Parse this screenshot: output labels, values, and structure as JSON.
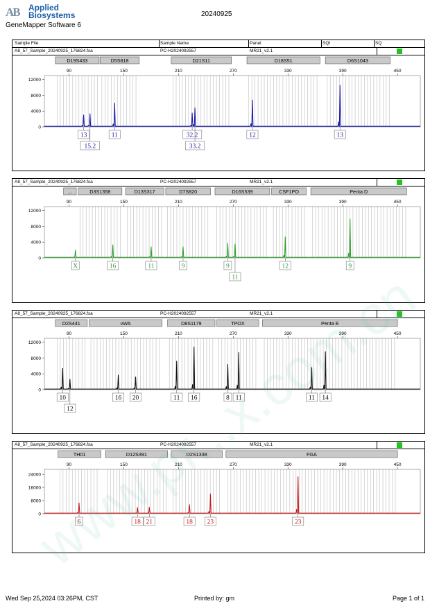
{
  "header": {
    "logo_mark": "AB",
    "logo_line1": "Applied",
    "logo_line2": "Biosystems",
    "software": "GeneMapper Software 6",
    "date": "20240925"
  },
  "columns": {
    "sample_file": "Sample File",
    "sample_name": "Sample Name",
    "panel": "Panel",
    "sqi": "SQI",
    "sq": "SQ"
  },
  "sample": {
    "file": "A8_57_Sample_20240925_176824.fsa",
    "name": "PC-H2024092557",
    "panel": "MR21_v2.1"
  },
  "colors": {
    "sq_box": "#22c322"
  },
  "footer": {
    "date": "Wed Sep 25,2024 03:26PM, CST",
    "printed": "Printed by: gm",
    "page": "Page 1 of 1"
  },
  "watermark": "www.pr...x.com.cn",
  "chart_data": [
    {
      "type": "line",
      "color": "#1c1ca8",
      "x_ticks": [
        90,
        150,
        210,
        270,
        330,
        390,
        450
      ],
      "y_ticks": [
        0,
        4000,
        8000,
        12000
      ],
      "ylim": [
        0,
        13000
      ],
      "loci": [
        {
          "name": "D19S433",
          "start": 75,
          "end": 123
        },
        {
          "name": "D5S818",
          "start": 124,
          "end": 167
        },
        {
          "name": "D21S11",
          "start": 202,
          "end": 268
        },
        {
          "name": "D18S51",
          "start": 285,
          "end": 365
        },
        {
          "name": "D6S1043",
          "start": 371,
          "end": 442
        }
      ],
      "peaks": [
        {
          "x": 106,
          "height": 3000,
          "allele": "13",
          "row": 1
        },
        {
          "x": 113,
          "height": 3300,
          "allele": "15.2",
          "row": 2
        },
        {
          "x": 140,
          "height": 6000,
          "allele": "11",
          "row": 1
        },
        {
          "x": 225,
          "height": 3500,
          "allele": "32.2",
          "row": 1
        },
        {
          "x": 228,
          "height": 4800,
          "allele": "33.2",
          "row": 2
        },
        {
          "x": 291,
          "height": 6800,
          "allele": "12",
          "row": 1
        },
        {
          "x": 387,
          "height": 10500,
          "allele": "13",
          "row": 1
        }
      ]
    },
    {
      "type": "line",
      "color": "#2e9e2e",
      "x_ticks": [
        90,
        150,
        210,
        270,
        330,
        390,
        450
      ],
      "y_ticks": [
        0,
        4000,
        8000,
        12000
      ],
      "ylim": [
        0,
        13000
      ],
      "loci": [
        {
          "name": "...",
          "start": 84,
          "end": 98
        },
        {
          "name": "D3S1358",
          "start": 100,
          "end": 148
        },
        {
          "name": "D13S317",
          "start": 152,
          "end": 194
        },
        {
          "name": "D7S820",
          "start": 196,
          "end": 245
        },
        {
          "name": "D16S539",
          "start": 250,
          "end": 310
        },
        {
          "name": "CSF1PO",
          "start": 312,
          "end": 350
        },
        {
          "name": "Penta D",
          "start": 355,
          "end": 460
        }
      ],
      "peaks": [
        {
          "x": 97,
          "height": 2000,
          "allele": "X",
          "row": 1
        },
        {
          "x": 138,
          "height": 3300,
          "allele": "16",
          "row": 1
        },
        {
          "x": 180,
          "height": 2800,
          "allele": "11",
          "row": 1
        },
        {
          "x": 215,
          "height": 2800,
          "allele": "9",
          "row": 1
        },
        {
          "x": 264,
          "height": 3700,
          "allele": "9",
          "row": 1
        },
        {
          "x": 272,
          "height": 3500,
          "allele": "11",
          "row": 2
        },
        {
          "x": 327,
          "height": 5300,
          "allele": "12",
          "row": 1
        },
        {
          "x": 398,
          "height": 9800,
          "allele": "9",
          "row": 1
        }
      ]
    },
    {
      "type": "line",
      "color": "#111111",
      "x_ticks": [
        90,
        150,
        210,
        270,
        330,
        390,
        450
      ],
      "y_ticks": [
        0,
        4000,
        8000,
        12000
      ],
      "ylim": [
        0,
        13000
      ],
      "loci": [
        {
          "name": "D2S441",
          "start": 75,
          "end": 110
        },
        {
          "name": "vWA",
          "start": 112,
          "end": 192
        },
        {
          "name": "D8S1179",
          "start": 198,
          "end": 250
        },
        {
          "name": "TPOX",
          "start": 252,
          "end": 298
        },
        {
          "name": "Penta E",
          "start": 302,
          "end": 450
        }
      ],
      "peaks": [
        {
          "x": 83,
          "height": 5400,
          "allele": "10",
          "row": 1
        },
        {
          "x": 91,
          "height": 2600,
          "allele": "12",
          "row": 2
        },
        {
          "x": 144,
          "height": 3700,
          "allele": "16",
          "row": 1
        },
        {
          "x": 163,
          "height": 3200,
          "allele": "20",
          "row": 1
        },
        {
          "x": 208,
          "height": 7200,
          "allele": "11",
          "row": 1
        },
        {
          "x": 227,
          "height": 10800,
          "allele": "16",
          "row": 1
        },
        {
          "x": 264,
          "height": 6400,
          "allele": "8",
          "row": 1
        },
        {
          "x": 276,
          "height": 9400,
          "allele": "11",
          "row": 1
        },
        {
          "x": 356,
          "height": 5600,
          "allele": "11",
          "row": 1
        },
        {
          "x": 371,
          "height": 9600,
          "allele": "14",
          "row": 1
        }
      ]
    },
    {
      "type": "line",
      "color": "#c81a1a",
      "x_ticks": [
        90,
        150,
        210,
        270,
        330,
        390,
        450
      ],
      "y_ticks": [
        0,
        8000,
        16000,
        24000
      ],
      "ylim": [
        0,
        27000
      ],
      "loci": [
        {
          "name": "TH01",
          "start": 78,
          "end": 125
        },
        {
          "name": "D12S391",
          "start": 130,
          "end": 198
        },
        {
          "name": "D2S1338",
          "start": 202,
          "end": 258
        },
        {
          "name": "FGA",
          "start": 262,
          "end": 450
        }
      ],
      "peaks": [
        {
          "x": 101,
          "height": 6500,
          "allele": "6",
          "row": 1
        },
        {
          "x": 165,
          "height": 3800,
          "allele": "18",
          "row": 1
        },
        {
          "x": 178,
          "height": 4000,
          "allele": "21",
          "row": 1
        },
        {
          "x": 222,
          "height": 5500,
          "allele": "18",
          "row": 1
        },
        {
          "x": 245,
          "height": 12000,
          "allele": "23",
          "row": 1
        },
        {
          "x": 341,
          "height": 22500,
          "allele": "23",
          "row": 1
        }
      ]
    }
  ]
}
